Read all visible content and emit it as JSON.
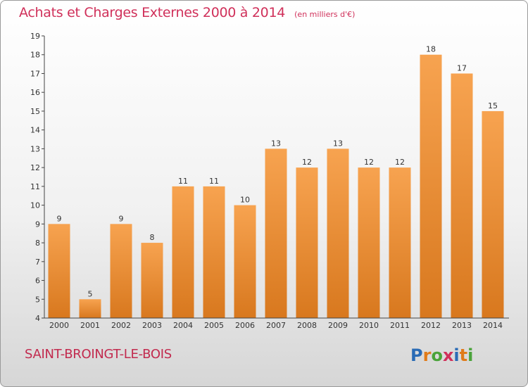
{
  "header": {
    "title": "Achats et Charges Externes 2000 à 2014",
    "subtitle": "(en milliers d'€)"
  },
  "footer": {
    "commune": "SAINT-BROINGT-LE-BOIS",
    "brand_letters": [
      "P",
      "r",
      "o",
      "x",
      "i",
      "t",
      "i"
    ],
    "brand_colors": [
      "#2a6bb5",
      "#e07b1a",
      "#4aa33a",
      "#d0305a",
      "#2a6bb5",
      "#e07b1a",
      "#4aa33a"
    ]
  },
  "colors": {
    "bar_light": "#f7a350",
    "bar_dark": "#d8781e",
    "title": "#d0305a",
    "axis": "#333333"
  },
  "chart_data": {
    "type": "bar",
    "categories": [
      "2000",
      "2001",
      "2002",
      "2003",
      "2004",
      "2005",
      "2006",
      "2007",
      "2008",
      "2009",
      "2010",
      "2011",
      "2012",
      "2013",
      "2014"
    ],
    "values": [
      9,
      5,
      9,
      8,
      11,
      11,
      10,
      13,
      12,
      13,
      12,
      12,
      18,
      17,
      15
    ],
    "ylim": [
      4,
      19
    ],
    "yticks": [
      4,
      5,
      6,
      7,
      8,
      9,
      10,
      11,
      12,
      13,
      14,
      15,
      16,
      17,
      18,
      19
    ],
    "grid": false,
    "data_labels": true
  }
}
